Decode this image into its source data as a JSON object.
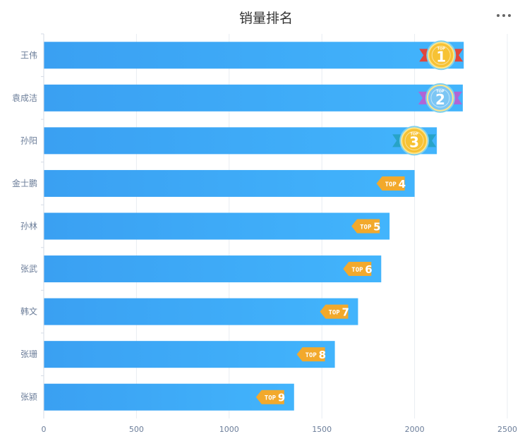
{
  "title": "销量排名",
  "menu_icon": "more-horizontal-icon",
  "colors": {
    "bar_start": "#3aa0f2",
    "bar_end": "#42b4fc",
    "tag": "#f2a92c",
    "axis_text": "#6b7d99",
    "grid": "#e8ecf2"
  },
  "chart_data": {
    "type": "bar",
    "orientation": "horizontal",
    "title": "销量排名",
    "xlabel": "",
    "ylabel": "",
    "xlim": [
      0,
      2500
    ],
    "x_ticks": [
      0,
      500,
      1000,
      1500,
      2000,
      2500
    ],
    "grid": true,
    "categories": [
      "王伟",
      "袁成洁",
      "孙阳",
      "金士鹏",
      "孙林",
      "张武",
      "韩文",
      "张珊",
      "张颍"
    ],
    "values": [
      2265,
      2260,
      2120,
      2000,
      1865,
      1820,
      1695,
      1570,
      1350
    ],
    "badges": [
      {
        "rank": "1",
        "label": "TOP",
        "style": "medal",
        "color": "#e0463c"
      },
      {
        "rank": "2",
        "label": "TOP",
        "style": "medal",
        "color": "#b065d6"
      },
      {
        "rank": "3",
        "label": "TOP",
        "style": "medal",
        "color": "#27a3c7"
      },
      {
        "rank": "4",
        "label": "TOP",
        "style": "tag"
      },
      {
        "rank": "5",
        "label": "TOP",
        "style": "tag"
      },
      {
        "rank": "6",
        "label": "TOP",
        "style": "tag"
      },
      {
        "rank": "7",
        "label": "TOP",
        "style": "tag"
      },
      {
        "rank": "8",
        "label": "TOP",
        "style": "tag"
      },
      {
        "rank": "9",
        "label": "TOP",
        "style": "tag"
      }
    ]
  }
}
